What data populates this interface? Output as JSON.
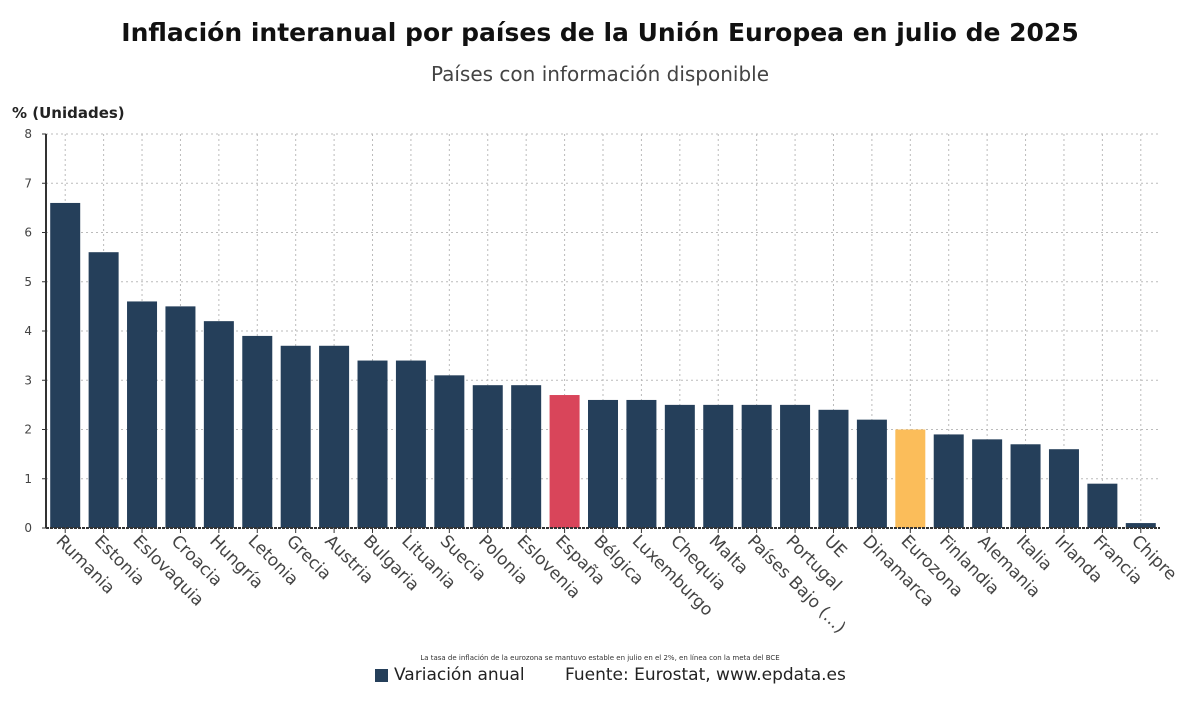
{
  "chart_data": {
    "type": "bar",
    "title": "Inflación interanual por países de la Unión Europea en julio de 2025",
    "subtitle": "Países con información disponible",
    "ylabel": "% (Unidades)",
    "xlabel": "",
    "ylim": [
      0,
      8
    ],
    "yticks": [
      "0",
      "1",
      "2",
      "3",
      "4",
      "5",
      "6",
      "7",
      "8"
    ],
    "grid": true,
    "categories": [
      "Rumania",
      "Estonia",
      "Eslovaquia",
      "Croacia",
      "Hungría",
      "Letonia",
      "Grecia",
      "Austria",
      "Bulgaria",
      "Lituania",
      "Suecia",
      "Polonia",
      "Eslovenia",
      "España",
      "Bélgica",
      "Luxemburgo",
      "Chequia",
      "Malta",
      "Países Bajo (...)",
      "Portugal",
      "UE",
      "Dinamarca",
      "Eurozona",
      "Finlandia",
      "Alemania",
      "Italia",
      "Irlanda",
      "Francia",
      "Chipre"
    ],
    "series": [
      {
        "name": "Variación anual",
        "values": [
          6.6,
          5.6,
          4.6,
          4.5,
          4.2,
          3.9,
          3.7,
          3.7,
          3.4,
          3.4,
          3.1,
          2.9,
          2.9,
          2.7,
          2.6,
          2.6,
          2.5,
          2.5,
          2.5,
          2.5,
          2.4,
          2.2,
          2.0,
          1.9,
          1.8,
          1.7,
          1.6,
          0.9,
          0.1
        ]
      }
    ],
    "colors": {
      "default": "#253f5a",
      "España": "#d9455a",
      "Eurozona": "#fbbd5a"
    },
    "legend_position": "bottom",
    "note": "La tasa de inflación de la eurozona se mantuvo estable en julio en el 2%, en línea con la meta del BCE",
    "source": "Fuente: Eurostat, www.epdata.es"
  }
}
